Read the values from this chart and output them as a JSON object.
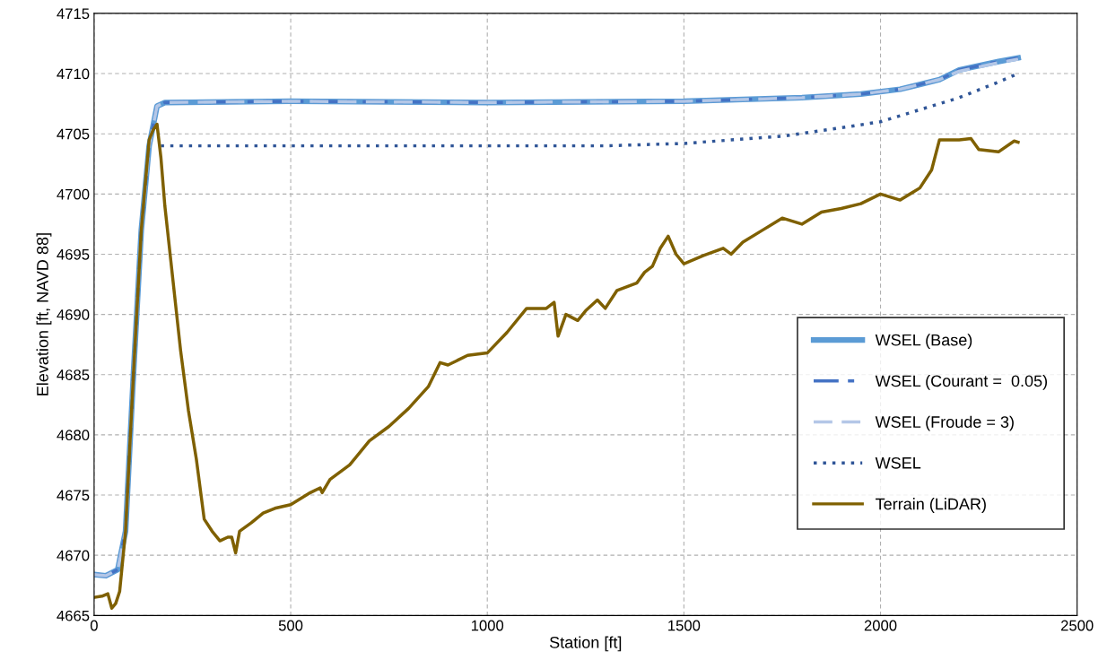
{
  "chart_data": {
    "type": "line",
    "xlabel": "Station [ft]",
    "ylabel": "Elevation [ft, NAVD 88]",
    "xlim": [
      0,
      2500
    ],
    "xticks": [
      0,
      500,
      1000,
      1500,
      2000,
      2500
    ],
    "ylim": [
      4665,
      4715
    ],
    "yticks": [
      4665,
      4670,
      4675,
      4680,
      4685,
      4690,
      4695,
      4700,
      4705,
      4710,
      4715
    ],
    "grid": true,
    "legend": "bottom right",
    "series": [
      {
        "name": "WSEL (Base)",
        "color": "#5b9bd5",
        "line_style": "solid",
        "x": [
          0,
          30,
          60,
          80,
          100,
          120,
          140,
          160,
          180,
          500,
          1000,
          1500,
          1800,
          1950,
          2050,
          2150,
          2200,
          2300,
          2350
        ],
        "values": [
          4668.4,
          4668.3,
          4668.8,
          4672,
          4685,
          4697,
          4704,
          4707.3,
          4707.6,
          4707.7,
          4707.6,
          4707.7,
          4708,
          4708.3,
          4708.7,
          4709.5,
          4710.3,
          4711,
          4711.3
        ]
      },
      {
        "name": "WSEL (Courant =  0.05)",
        "color": "#4472c4",
        "line_style": "dashdot",
        "x": [
          0,
          30,
          60,
          80,
          100,
          120,
          140,
          160,
          180,
          500,
          1000,
          1500,
          1800,
          1950,
          2050,
          2150,
          2200,
          2300,
          2350
        ],
        "values": [
          4668.4,
          4668.3,
          4668.8,
          4672,
          4685,
          4697,
          4704,
          4707.3,
          4707.6,
          4707.7,
          4707.6,
          4707.7,
          4708,
          4708.3,
          4708.7,
          4709.5,
          4710.3,
          4711,
          4711.3
        ]
      },
      {
        "name": "WSEL (Froude = 3)",
        "color": "#b4c7e7",
        "line_style": "dashed",
        "x": [
          0,
          30,
          60,
          80,
          100,
          120,
          140,
          160,
          180,
          500,
          1000,
          1500,
          1800,
          1950,
          2050,
          2150,
          2200,
          2300,
          2350
        ],
        "values": [
          4668.4,
          4668.3,
          4668.8,
          4672,
          4685,
          4697,
          4704,
          4707.3,
          4707.6,
          4707.7,
          4707.6,
          4707.7,
          4708,
          4708.3,
          4708.7,
          4709.5,
          4710.2,
          4710.9,
          4711.2
        ]
      },
      {
        "name": "WSEL",
        "color": "#2f5597",
        "line_style": "dotted",
        "x": [
          170,
          1000,
          1300,
          1500,
          1750,
          1900,
          2000,
          2100,
          2200,
          2300,
          2350
        ],
        "values": [
          4704,
          4704,
          4704,
          4704.2,
          4704.8,
          4705.5,
          4706,
          4707,
          4708,
          4709.3,
          4710
        ]
      },
      {
        "name": "Terrain (LiDAR)",
        "color": "#7f6000",
        "line_style": "solid",
        "x": [
          0,
          20,
          35,
          45,
          55,
          65,
          80,
          100,
          120,
          140,
          150,
          160,
          170,
          180,
          200,
          220,
          240,
          260,
          280,
          300,
          320,
          340,
          350,
          360,
          370,
          400,
          430,
          460,
          500,
          550,
          575,
          580,
          600,
          650,
          700,
          750,
          800,
          850,
          880,
          900,
          950,
          1000,
          1050,
          1100,
          1150,
          1170,
          1180,
          1200,
          1230,
          1250,
          1280,
          1300,
          1330,
          1380,
          1400,
          1420,
          1440,
          1460,
          1480,
          1500,
          1550,
          1600,
          1620,
          1650,
          1700,
          1750,
          1800,
          1850,
          1900,
          1950,
          2000,
          2050,
          2100,
          2130,
          2150,
          2200,
          2230,
          2250,
          2300,
          2340,
          2350
        ],
        "values": [
          4666.5,
          4666.6,
          4666.8,
          4665.6,
          4666,
          4667,
          4672,
          4685,
          4697,
          4704.5,
          4705.3,
          4705.8,
          4703,
          4699,
          4693,
          4687,
          4682,
          4678,
          4673,
          4672,
          4671.2,
          4671.5,
          4671.5,
          4670.2,
          4672,
          4672.7,
          4673.5,
          4673.9,
          4674.2,
          4675.2,
          4675.6,
          4675.2,
          4676.3,
          4677.5,
          4679.5,
          4680.7,
          4682.2,
          4684,
          4686,
          4685.8,
          4686.6,
          4686.8,
          4688.5,
          4690.5,
          4690.5,
          4691,
          4688.2,
          4690,
          4689.5,
          4690.3,
          4691.2,
          4690.5,
          4692,
          4692.6,
          4693.5,
          4694,
          4695.5,
          4696.5,
          4695,
          4694.2,
          4694.9,
          4695.5,
          4695,
          4696,
          4697,
          4698,
          4697.5,
          4698.5,
          4698.8,
          4699.2,
          4700,
          4699.5,
          4700.5,
          4702,
          4704.5,
          4704.5,
          4704.6,
          4703.7,
          4703.5,
          4704.4,
          4704.3
        ]
      }
    ]
  }
}
